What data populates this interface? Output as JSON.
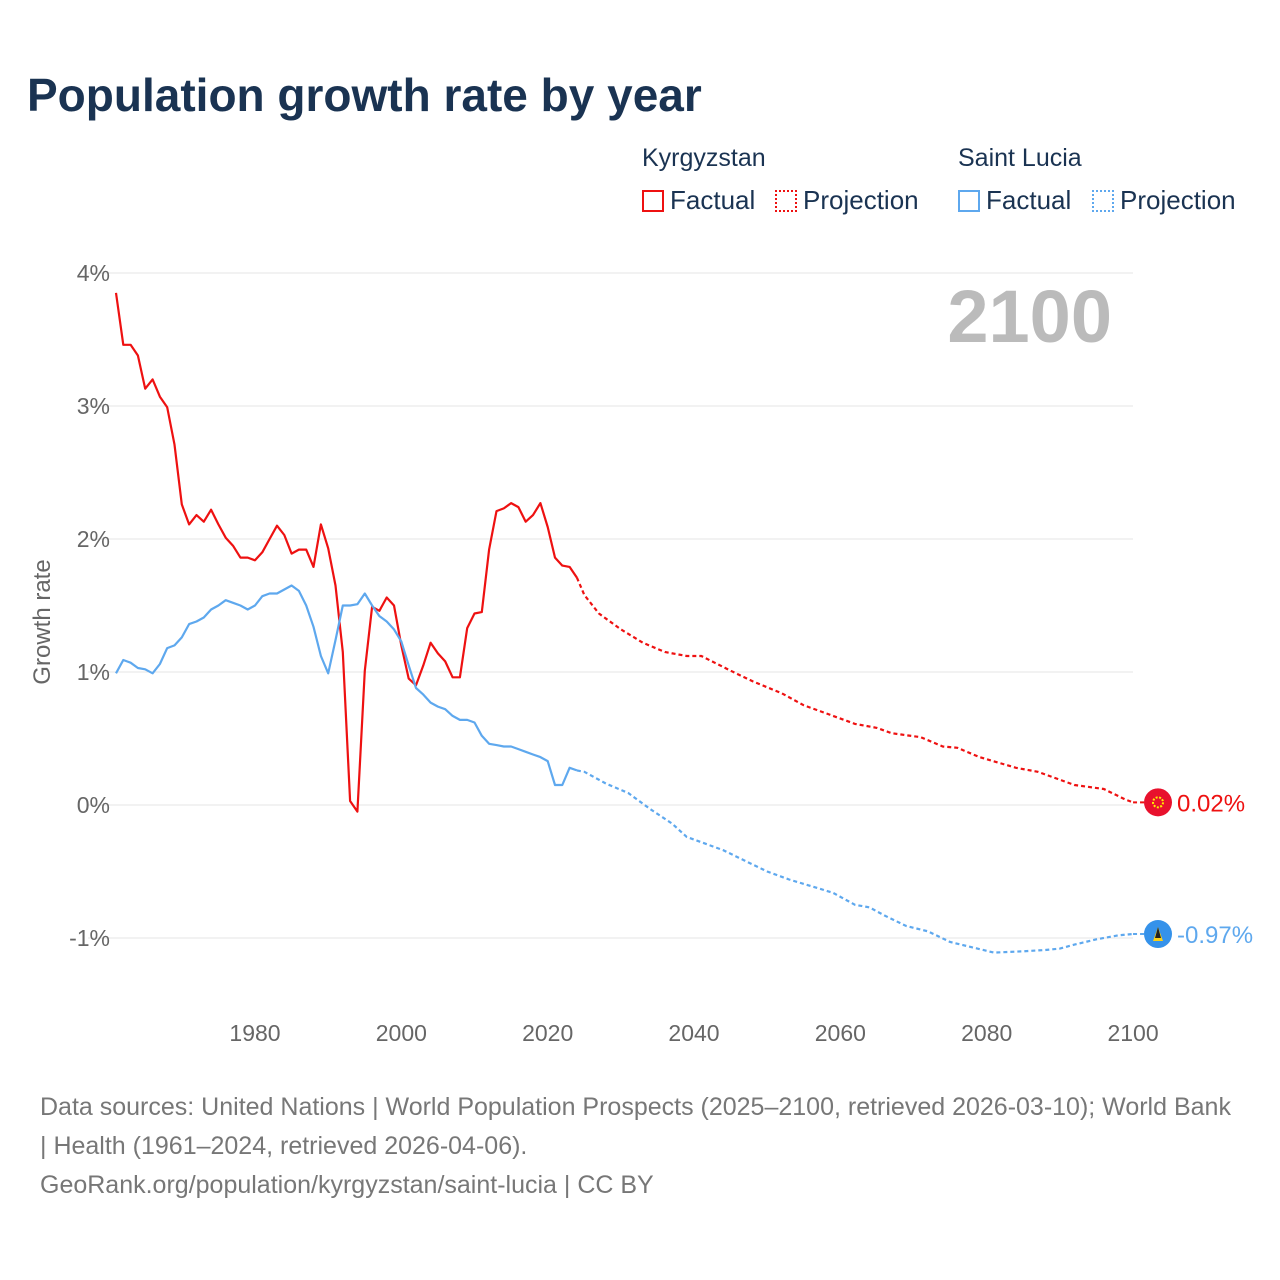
{
  "title": "Population growth rate by year",
  "legend": {
    "groups": [
      {
        "country": "Kyrgyzstan",
        "factual": "Factual",
        "projection": "Projection",
        "color": "#ee1111"
      },
      {
        "country": "Saint Lucia",
        "factual": "Factual",
        "projection": "Projection",
        "color": "#5ea8ee"
      }
    ]
  },
  "year_label": "2100",
  "source": {
    "line1": "Data sources: United Nations | World Population Prospects (2025–2100, retrieved 2026-03-10); World Bank | Health (1961–2024, retrieved 2026-04-06).",
    "line2": "GeoRank.org/population/kyrgyzstan/saint-lucia | CC BY"
  },
  "chart_data": {
    "type": "line",
    "title": "Population growth rate by year",
    "ylabel": "Growth rate",
    "xlabel": "",
    "xlim": [
      1961,
      2100
    ],
    "ylim": [
      -1.5,
      4
    ],
    "y_ticks": [
      {
        "v": 4,
        "label": "4%"
      },
      {
        "v": 3,
        "label": "3%"
      },
      {
        "v": 2,
        "label": "2%"
      },
      {
        "v": 1,
        "label": "1%"
      },
      {
        "v": 0,
        "label": "0%"
      },
      {
        "v": -1,
        "label": "-1%"
      }
    ],
    "x_ticks": [
      1980,
      2000,
      2020,
      2040,
      2060,
      2080,
      2100
    ],
    "grid": true,
    "series": [
      {
        "name": "Kyrgyzstan",
        "color": "#ee1111",
        "end_label": "0.02%",
        "flag": "kyrgyzstan-flag",
        "factual_start": 1961,
        "factual": [
          3.85,
          3.46,
          3.46,
          3.38,
          3.13,
          3.2,
          3.07,
          2.99,
          2.71,
          2.26,
          2.11,
          2.18,
          2.13,
          2.22,
          2.11,
          2.01,
          1.95,
          1.86,
          1.86,
          1.84,
          1.9,
          2.0,
          2.1,
          2.03,
          1.89,
          1.92,
          1.92,
          1.79,
          2.11,
          1.93,
          1.65,
          1.15,
          0.03,
          -0.05,
          1.01,
          1.49,
          1.46,
          1.56,
          1.5,
          1.2,
          0.95,
          0.9,
          1.05,
          1.22,
          1.14,
          1.08,
          0.96,
          0.96,
          1.33,
          1.44,
          1.45,
          1.92,
          2.21,
          2.23,
          2.27,
          2.24,
          2.13,
          2.18,
          2.27,
          2.09,
          1.86,
          1.8,
          1.79,
          1.71
        ],
        "projection": [
          [
            2024,
            1.71
          ],
          [
            2025,
            1.58
          ],
          [
            2027,
            1.44
          ],
          [
            2030,
            1.32
          ],
          [
            2033,
            1.22
          ],
          [
            2036,
            1.15
          ],
          [
            2039,
            1.12
          ],
          [
            2041,
            1.12
          ],
          [
            2045,
            1.01
          ],
          [
            2048,
            0.93
          ],
          [
            2052,
            0.84
          ],
          [
            2055,
            0.75
          ],
          [
            2058,
            0.69
          ],
          [
            2062,
            0.61
          ],
          [
            2065,
            0.58
          ],
          [
            2067,
            0.54
          ],
          [
            2071,
            0.51
          ],
          [
            2074,
            0.44
          ],
          [
            2076,
            0.43
          ],
          [
            2079,
            0.36
          ],
          [
            2084,
            0.28
          ],
          [
            2087,
            0.25
          ],
          [
            2092,
            0.15
          ],
          [
            2096,
            0.12
          ],
          [
            2099,
            0.04
          ],
          [
            2100,
            0.02
          ]
        ]
      },
      {
        "name": "Saint Lucia",
        "color": "#5ea8ee",
        "end_label": "-0.97%",
        "flag": "saint-lucia-flag",
        "factual_start": 1961,
        "factual": [
          0.99,
          1.09,
          1.07,
          1.03,
          1.02,
          0.99,
          1.06,
          1.18,
          1.2,
          1.26,
          1.36,
          1.38,
          1.41,
          1.47,
          1.5,
          1.54,
          1.52,
          1.5,
          1.47,
          1.5,
          1.57,
          1.59,
          1.59,
          1.62,
          1.65,
          1.61,
          1.5,
          1.34,
          1.12,
          0.99,
          1.24,
          1.5,
          1.5,
          1.51,
          1.59,
          1.5,
          1.42,
          1.38,
          1.32,
          1.23,
          1.05,
          0.88,
          0.83,
          0.77,
          0.74,
          0.72,
          0.67,
          0.64,
          0.64,
          0.62,
          0.52,
          0.46,
          0.45,
          0.44,
          0.44,
          0.42,
          0.4,
          0.38,
          0.36,
          0.33,
          0.15,
          0.15,
          0.28,
          0.26
        ],
        "projection": [
          [
            2024,
            0.26
          ],
          [
            2025,
            0.25
          ],
          [
            2028,
            0.16
          ],
          [
            2031,
            0.09
          ],
          [
            2034,
            -0.03
          ],
          [
            2037,
            -0.14
          ],
          [
            2039,
            -0.24
          ],
          [
            2042,
            -0.3
          ],
          [
            2044,
            -0.34
          ],
          [
            2047,
            -0.42
          ],
          [
            2050,
            -0.5
          ],
          [
            2053,
            -0.56
          ],
          [
            2056,
            -0.61
          ],
          [
            2059,
            -0.66
          ],
          [
            2062,
            -0.75
          ],
          [
            2064,
            -0.77
          ],
          [
            2066,
            -0.83
          ],
          [
            2069,
            -0.91
          ],
          [
            2072,
            -0.95
          ],
          [
            2075,
            -1.03
          ],
          [
            2078,
            -1.07
          ],
          [
            2081,
            -1.11
          ],
          [
            2085,
            -1.1
          ],
          [
            2088,
            -1.09
          ],
          [
            2090,
            -1.08
          ],
          [
            2092,
            -1.05
          ],
          [
            2095,
            -1.01
          ],
          [
            2098,
            -0.98
          ],
          [
            2100,
            -0.97
          ]
        ]
      }
    ]
  }
}
